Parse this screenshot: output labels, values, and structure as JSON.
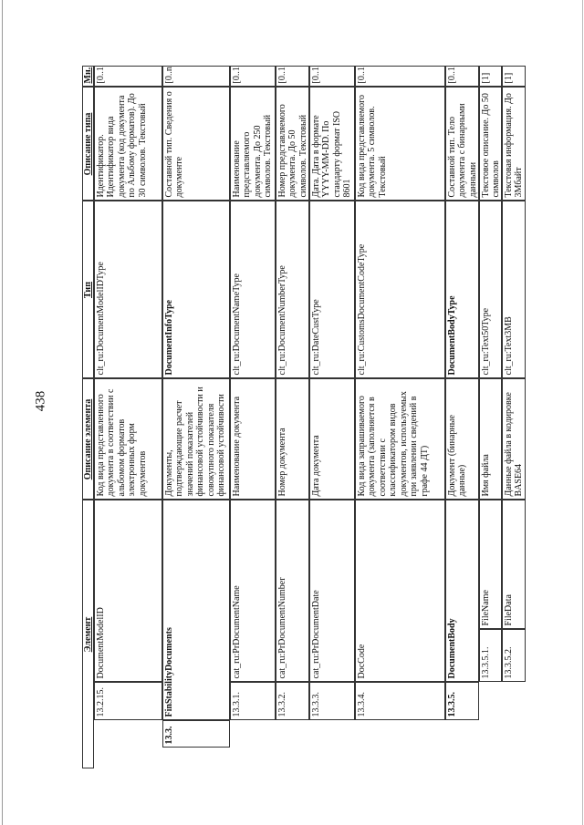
{
  "page_number": "438",
  "table": {
    "headers": [
      "Элемент",
      "Описание элемента",
      "Тип",
      "Описание типа",
      "Мн."
    ],
    "rows": [
      {
        "level": 2,
        "num": "13.2.15.",
        "name": "DocumentModelID",
        "name_bold": false,
        "desc": "Код вида представленного документа в соответствии с альбомом форматов электронных форм документов",
        "type": "clt_ru:DocumentModelIDType",
        "type_bold": false,
        "type_desc": "Идентификатор. Идентификатор вида документа (код документа по Альбому форматов). До 30 символов. Текстовый",
        "mult": "[0..1]"
      },
      {
        "level": 1,
        "num": "13.3.",
        "name": "FinStabilityDocuments",
        "name_bold": true,
        "desc": "Документы, подтверждающие расчет значений показателей финансовой устойчивости и совокупного показателя финансовой устойчивости",
        "type": "DocumentInfoType",
        "type_bold": true,
        "type_desc": "Составной тип. Сведения о документе",
        "mult": "[0..n]"
      },
      {
        "level": 2,
        "num": "13.3.1.",
        "name": "cat_ru:PrDocumentName",
        "name_bold": false,
        "desc": "Наименование документа",
        "type": "clt_ru:DocumentNameType",
        "type_bold": false,
        "type_desc": "Наименование представляемого документа. До 250 символов. Текстовый",
        "mult": "[0..1]"
      },
      {
        "level": 2,
        "num": "13.3.2.",
        "name": "cat_ru:PrDocumentNumber",
        "name_bold": false,
        "desc": "Номер документа",
        "type": "clt_ru:DocumentNumberType",
        "type_bold": false,
        "type_desc": "Номер представляемого документа. До 50 символов. Текстовый",
        "mult": "[0..1]"
      },
      {
        "level": 2,
        "num": "13.3.3.",
        "name": "cat_ru:PrDocumentDate",
        "name_bold": false,
        "desc": "Дата документа",
        "type": "clt_ru:DateCustType",
        "type_bold": false,
        "type_desc": "Дата. Дата в формате YYYY-MM-DD. По стандарту формат ISO 8601",
        "mult": "[0..1]"
      },
      {
        "level": 2,
        "num": "13.3.4.",
        "name": "DocCode",
        "name_bold": false,
        "desc": "Код вида запрашиваемого документа (заполняется в соответствии с классификатором видов документов, используемых при заявлении сведений в графе 44 ДТ)",
        "type": "clt_ru:CustomsDocumentCodeType",
        "type_bold": false,
        "type_desc": "Код вида представляемого документа. 5 символов. Текстовый",
        "mult": "[0..1]"
      },
      {
        "level": 2,
        "num": "13.3.5.",
        "name": "DocumentBody",
        "name_bold": true,
        "desc": "Документ (бинарные данные)",
        "type": "DocumentBodyType",
        "type_bold": true,
        "type_desc": "Составной тип. Тело документа с бинарными данными",
        "mult": "[0..1]"
      },
      {
        "level": 3,
        "num": "13.3.5.1.",
        "name": "FileName",
        "name_bold": false,
        "desc": "Имя файла",
        "type": "clt_ru:Text50Type",
        "type_bold": false,
        "type_desc": "Текстовое описание. До 50 символов",
        "mult": "[1]"
      },
      {
        "level": 3,
        "num": "13.3.5.2.",
        "name": "FileData",
        "name_bold": false,
        "desc": "Данные файла в кодировке BASE64",
        "type": "clt_ru:Text3MB",
        "type_bold": false,
        "type_desc": "Текстовая информация. До 3Мбайт",
        "mult": "[1]"
      }
    ]
  }
}
